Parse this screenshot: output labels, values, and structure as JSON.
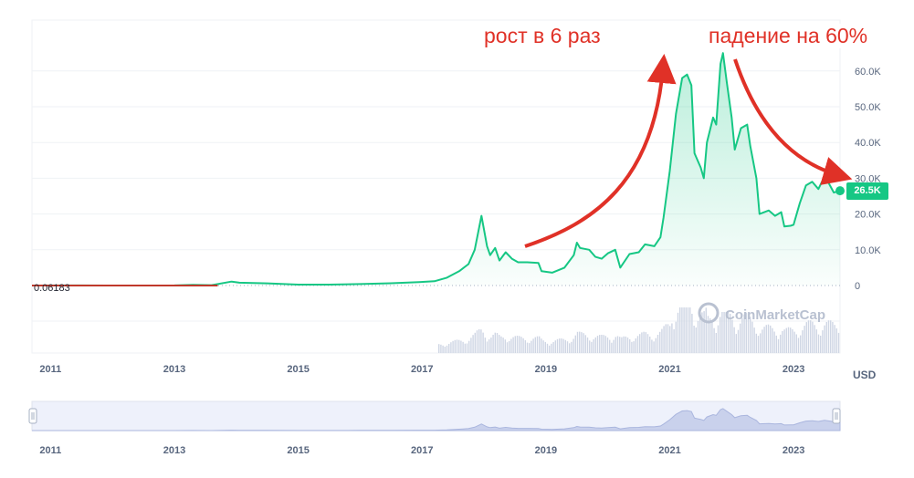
{
  "chart_data": {
    "type": "area",
    "title": "",
    "xlabel": "",
    "ylabel": "",
    "currency_label": "USD",
    "watermark": "CoinMarketCap",
    "x_ticks": [
      "2011",
      "2013",
      "2015",
      "2017",
      "2019",
      "2021",
      "2023"
    ],
    "y_ticks": [
      "0",
      "10.0K",
      "20.0K",
      "30.0K",
      "40.0K",
      "50.0K",
      "60.0K"
    ],
    "ylim": [
      0,
      70000
    ],
    "xlim": [
      2010.7,
      2023.75
    ],
    "start_value_label": "0.06183",
    "current_price_label": "26.5K",
    "current_price": 26500,
    "annotations": {
      "growth": "рост в 6 раз",
      "decline": "падение на 60%"
    },
    "colors": {
      "line": "#16c784",
      "early_line": "#c0392b",
      "arrow": "#e03127",
      "grid": "#eff2f5",
      "axis_text": "#58667e",
      "volume": "#cfd6e4",
      "navigator_bg": "#eef1fb"
    },
    "series": [
      {
        "values": [
          [
            2010.7,
            0.06
          ],
          [
            2011.45,
            15
          ],
          [
            2011.9,
            3
          ],
          [
            2012.5,
            8
          ],
          [
            2013.0,
            13
          ],
          [
            2013.3,
            200
          ],
          [
            2013.6,
            100
          ],
          [
            2013.92,
            1100
          ],
          [
            2014.05,
            800
          ],
          [
            2014.5,
            600
          ],
          [
            2015.0,
            250
          ],
          [
            2015.5,
            260
          ],
          [
            2016.0,
            420
          ],
          [
            2016.5,
            650
          ],
          [
            2016.95,
            950
          ],
          [
            2017.2,
            1200
          ],
          [
            2017.4,
            2200
          ],
          [
            2017.6,
            4000
          ],
          [
            2017.75,
            6000
          ],
          [
            2017.85,
            10000
          ],
          [
            2017.96,
            19500
          ],
          [
            2018.05,
            11000
          ],
          [
            2018.1,
            8500
          ],
          [
            2018.18,
            10500
          ],
          [
            2018.25,
            7000
          ],
          [
            2018.35,
            9300
          ],
          [
            2018.45,
            7500
          ],
          [
            2018.55,
            6500
          ],
          [
            2018.7,
            6500
          ],
          [
            2018.88,
            6300
          ],
          [
            2018.93,
            4000
          ],
          [
            2019.1,
            3600
          ],
          [
            2019.3,
            5000
          ],
          [
            2019.45,
            8500
          ],
          [
            2019.5,
            12000
          ],
          [
            2019.55,
            10500
          ],
          [
            2019.7,
            10000
          ],
          [
            2019.8,
            8000
          ],
          [
            2019.9,
            7500
          ],
          [
            2020.0,
            9000
          ],
          [
            2020.12,
            10000
          ],
          [
            2020.2,
            5000
          ],
          [
            2020.35,
            8800
          ],
          [
            2020.5,
            9300
          ],
          [
            2020.6,
            11500
          ],
          [
            2020.75,
            11000
          ],
          [
            2020.85,
            13500
          ],
          [
            2020.9,
            19000
          ],
          [
            2021.0,
            32000
          ],
          [
            2021.1,
            48000
          ],
          [
            2021.2,
            58000
          ],
          [
            2021.28,
            59000
          ],
          [
            2021.35,
            56000
          ],
          [
            2021.4,
            37000
          ],
          [
            2021.5,
            33000
          ],
          [
            2021.55,
            30000
          ],
          [
            2021.6,
            40000
          ],
          [
            2021.7,
            47000
          ],
          [
            2021.75,
            45000
          ],
          [
            2021.82,
            62000
          ],
          [
            2021.86,
            65000
          ],
          [
            2021.92,
            57000
          ],
          [
            2022.0,
            47000
          ],
          [
            2022.05,
            38000
          ],
          [
            2022.15,
            44000
          ],
          [
            2022.25,
            45000
          ],
          [
            2022.3,
            39000
          ],
          [
            2022.4,
            30000
          ],
          [
            2022.45,
            20000
          ],
          [
            2022.6,
            21000
          ],
          [
            2022.7,
            19500
          ],
          [
            2022.8,
            20500
          ],
          [
            2022.85,
            16500
          ],
          [
            2022.95,
            16700
          ],
          [
            2023.0,
            17000
          ],
          [
            2023.1,
            23000
          ],
          [
            2023.2,
            28000
          ],
          [
            2023.3,
            29000
          ],
          [
            2023.4,
            27000
          ],
          [
            2023.5,
            30500
          ],
          [
            2023.55,
            29200
          ],
          [
            2023.65,
            26000
          ],
          [
            2023.75,
            26500
          ]
        ]
      }
    ]
  }
}
